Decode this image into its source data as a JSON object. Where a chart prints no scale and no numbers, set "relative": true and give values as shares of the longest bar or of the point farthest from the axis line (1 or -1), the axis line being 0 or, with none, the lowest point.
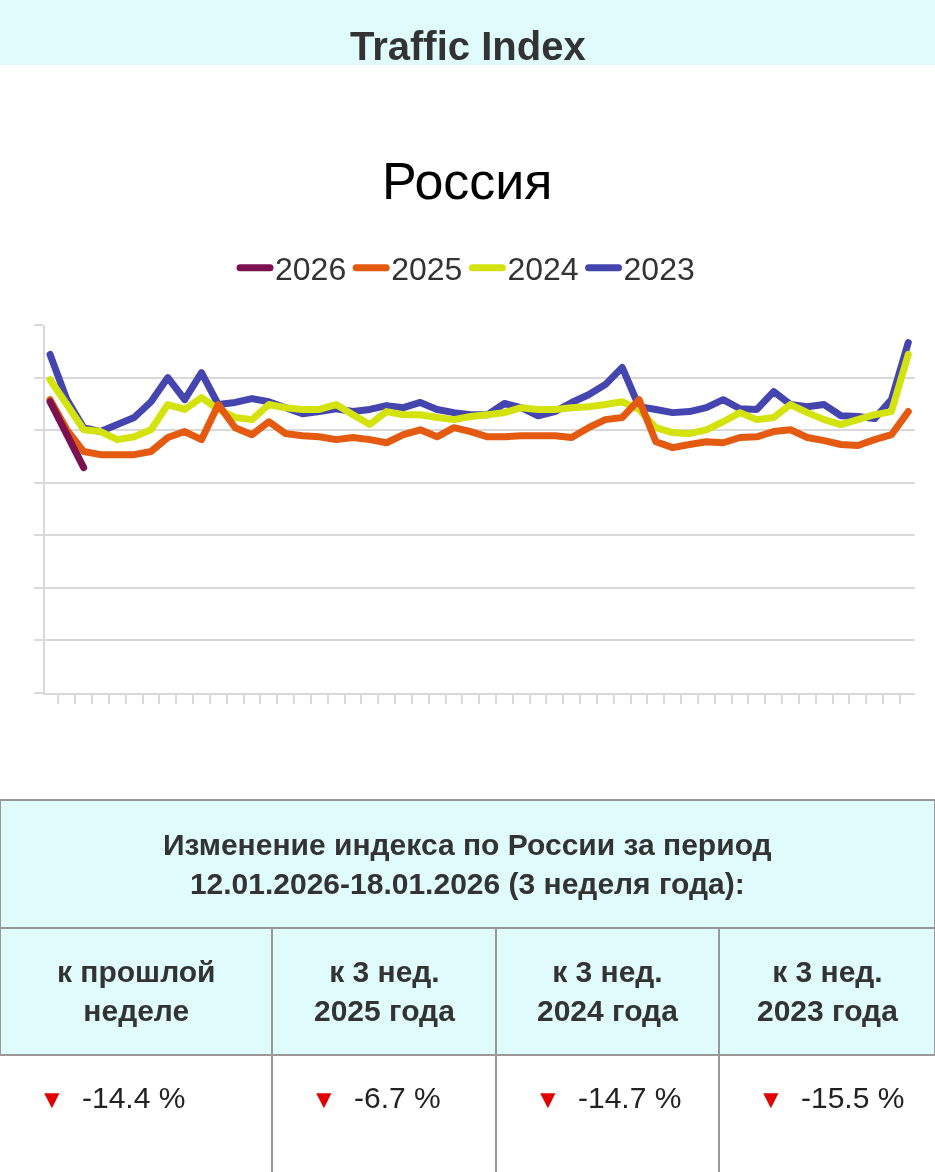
{
  "chart_data": {
    "type": "line",
    "title": "Traffic Index",
    "subtitle": "Россия",
    "relative": true,
    "grid": "y",
    "legend": "top",
    "categories": [
      null,
      null,
      null,
      null,
      null,
      null,
      null,
      null,
      null,
      null,
      null,
      null,
      null,
      null,
      null,
      null,
      null,
      null,
      null,
      null,
      null,
      null,
      null,
      null,
      null,
      null,
      null,
      null,
      null,
      null,
      null,
      null,
      null,
      null,
      null,
      null,
      null,
      null,
      null,
      null,
      null,
      null,
      null,
      null,
      null,
      null,
      null,
      null,
      null,
      null,
      null,
      null
    ],
    "series": [
      {
        "name": "2026",
        "color": "#7b1150",
        "values": [
          0.831,
          0.737,
          0.643,
          null,
          null,
          null,
          null,
          null,
          null,
          null,
          null,
          null,
          null,
          null,
          null,
          null,
          null,
          null,
          null,
          null,
          null,
          null,
          null,
          null,
          null,
          null,
          null,
          null,
          null,
          null,
          null,
          null,
          null,
          null,
          null,
          null,
          null,
          null,
          null,
          null,
          null,
          null,
          null,
          null,
          null,
          null,
          null,
          null,
          null,
          null,
          null,
          null
        ]
      },
      {
        "name": "2025",
        "color": "#e35a10",
        "values": [
          0.837,
          0.751,
          0.689,
          0.68,
          0.68,
          0.68,
          0.689,
          0.729,
          0.746,
          0.723,
          0.823,
          0.757,
          0.737,
          0.774,
          0.74,
          0.734,
          0.731,
          0.723,
          0.729,
          0.723,
          0.714,
          0.737,
          0.751,
          0.731,
          0.757,
          0.746,
          0.731,
          0.731,
          0.734,
          0.734,
          0.734,
          0.729,
          0.757,
          0.78,
          0.786,
          0.837,
          0.717,
          0.7,
          0.709,
          0.717,
          0.714,
          0.729,
          0.731,
          0.746,
          0.751,
          0.729,
          0.72,
          0.709,
          0.706,
          0.723,
          0.737,
          0.803
        ]
      },
      {
        "name": "2024",
        "color": "#d4e30e",
        "values": [
          0.894,
          0.823,
          0.751,
          0.746,
          0.723,
          0.731,
          0.751,
          0.823,
          0.809,
          0.843,
          0.809,
          0.786,
          0.78,
          0.823,
          0.814,
          0.809,
          0.809,
          0.823,
          0.794,
          0.766,
          0.803,
          0.794,
          0.794,
          0.786,
          0.78,
          0.789,
          0.794,
          0.8,
          0.814,
          0.809,
          0.809,
          0.814,
          0.817,
          0.823,
          0.831,
          0.809,
          0.757,
          0.743,
          0.74,
          0.751,
          0.774,
          0.8,
          0.78,
          0.786,
          0.823,
          0.8,
          0.78,
          0.766,
          0.78,
          0.794,
          0.803,
          0.966
        ]
      },
      {
        "name": "2023",
        "color": "#4545b0",
        "values": [
          0.966,
          0.837,
          0.757,
          0.746,
          0.766,
          0.786,
          0.831,
          0.9,
          0.837,
          0.914,
          0.823,
          0.829,
          0.84,
          0.831,
          0.814,
          0.797,
          0.803,
          0.811,
          0.803,
          0.809,
          0.82,
          0.814,
          0.829,
          0.809,
          0.8,
          0.794,
          0.794,
          0.826,
          0.814,
          0.791,
          0.803,
          0.829,
          0.851,
          0.88,
          0.929,
          0.817,
          0.809,
          0.8,
          0.803,
          0.814,
          0.837,
          0.811,
          0.809,
          0.86,
          0.823,
          0.817,
          0.823,
          0.791,
          0.789,
          0.783,
          0.837,
          1.0
        ]
      }
    ],
    "annotations": [
      "Изменение индекса по России за период 12.01.2026-18.01.2026 (3 неделя года):",
      "к прошлой неделе",
      "к 3 нед. 2025 года",
      "к 3 нед. 2024 года",
      "к 3 нед. 2023 года",
      "▼ -14.4 %",
      "▼ -6.7 %",
      "▼ -14.7 %",
      "▼ -15.5 %"
    ]
  }
}
